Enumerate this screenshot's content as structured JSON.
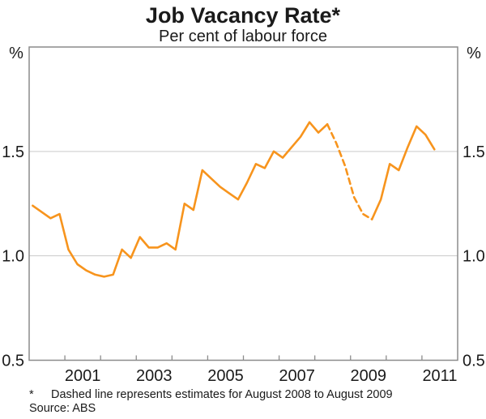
{
  "chart_data": {
    "type": "line",
    "title": "Job Vacancy Rate*",
    "subtitle": "Per cent of labour force",
    "unit_label": "%",
    "footnote_marker": "*",
    "footnote_text": "Dashed line represents estimates for August 2008 to August 2009",
    "source": "Source: ABS",
    "x_range": [
      2000,
      2012
    ],
    "y_range": [
      0.5,
      2.0
    ],
    "y_tick_labels": [
      "0.5",
      "1.0",
      "1.5"
    ],
    "y_tick_values": [
      0.5,
      1.0,
      1.5
    ],
    "gridline_values": [
      1.0,
      1.5
    ],
    "x_tick_years": [
      2001,
      2002,
      2003,
      2004,
      2005,
      2006,
      2007,
      2008,
      2009,
      2010,
      2011
    ],
    "x_labels": [
      2001,
      2003,
      2005,
      2007,
      2009,
      2011
    ],
    "grid_on": true,
    "legend": "none",
    "colors": {
      "line": "#f7941d",
      "frame": "#8c8c8c",
      "grid": "#c9c9c9",
      "text": "#1a1a1a"
    },
    "series": [
      {
        "name": "job-vacancy-rate-actual-to-may-2008",
        "style": "solid",
        "points": [
          [
            2000.1,
            1.24
          ],
          [
            2000.35,
            1.21
          ],
          [
            2000.6,
            1.18
          ],
          [
            2000.85,
            1.2
          ],
          [
            2001.1,
            1.03
          ],
          [
            2001.35,
            0.96
          ],
          [
            2001.6,
            0.93
          ],
          [
            2001.85,
            0.91
          ],
          [
            2002.1,
            0.9
          ],
          [
            2002.35,
            0.91
          ],
          [
            2002.6,
            1.03
          ],
          [
            2002.85,
            0.99
          ],
          [
            2003.1,
            1.09
          ],
          [
            2003.35,
            1.04
          ],
          [
            2003.6,
            1.04
          ],
          [
            2003.85,
            1.06
          ],
          [
            2004.1,
            1.03
          ],
          [
            2004.35,
            1.25
          ],
          [
            2004.6,
            1.22
          ],
          [
            2004.85,
            1.41
          ],
          [
            2005.1,
            1.37
          ],
          [
            2005.35,
            1.33
          ],
          [
            2005.6,
            1.3
          ],
          [
            2005.85,
            1.27
          ],
          [
            2006.1,
            1.35
          ],
          [
            2006.35,
            1.44
          ],
          [
            2006.6,
            1.42
          ],
          [
            2006.85,
            1.5
          ],
          [
            2007.1,
            1.47
          ],
          [
            2007.35,
            1.52
          ],
          [
            2007.6,
            1.57
          ],
          [
            2007.85,
            1.64
          ],
          [
            2008.1,
            1.59
          ],
          [
            2008.35,
            1.63
          ]
        ]
      },
      {
        "name": "job-vacancy-rate-estimates-aug2008-aug2009",
        "style": "dashed",
        "points": [
          [
            2008.35,
            1.63
          ],
          [
            2008.6,
            1.54
          ],
          [
            2008.85,
            1.43
          ],
          [
            2009.1,
            1.28
          ],
          [
            2009.35,
            1.2
          ],
          [
            2009.6,
            1.175
          ]
        ]
      },
      {
        "name": "job-vacancy-rate-actual-from-aug-2009",
        "style": "solid",
        "points": [
          [
            2009.6,
            1.175
          ],
          [
            2009.85,
            1.27
          ],
          [
            2010.1,
            1.44
          ],
          [
            2010.35,
            1.41
          ],
          [
            2010.6,
            1.52
          ],
          [
            2010.85,
            1.62
          ],
          [
            2011.1,
            1.58
          ],
          [
            2011.35,
            1.51
          ]
        ]
      }
    ]
  }
}
